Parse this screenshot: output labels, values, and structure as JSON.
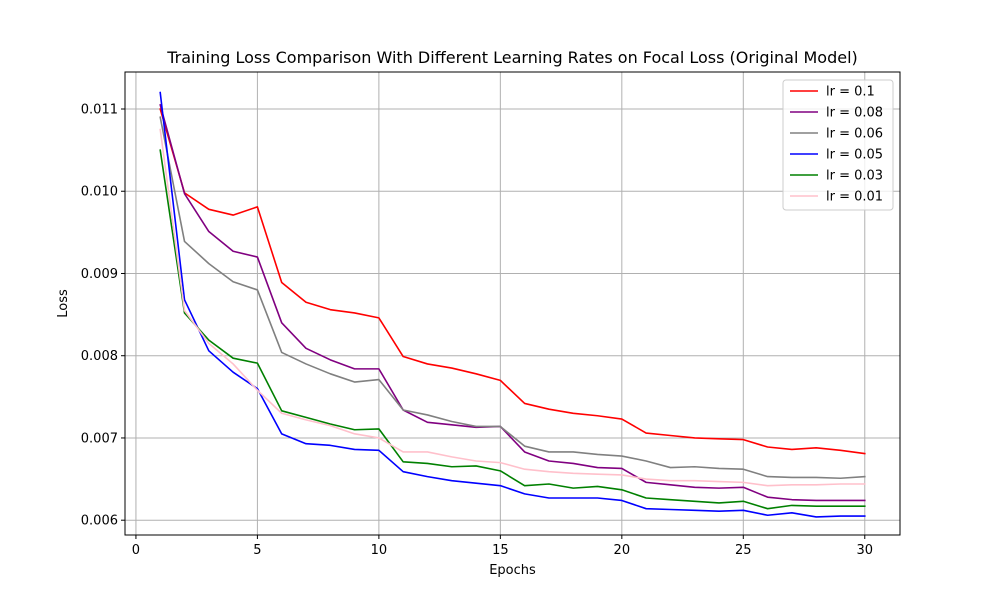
{
  "chart_data": {
    "type": "line",
    "title": "Training Loss Comparison With Different Learning Rates on Focal Loss (Original Model)",
    "xlabel": "Epochs",
    "ylabel": "Loss",
    "xlim": [
      -0.45,
      31.45
    ],
    "ylim": [
      0.00582,
      0.01145
    ],
    "xticks": [
      0,
      5,
      10,
      15,
      20,
      25,
      30
    ],
    "yticks": [
      0.006,
      0.007,
      0.008,
      0.009,
      0.01,
      0.011
    ],
    "ytick_labels": [
      "0.006",
      "0.007",
      "0.008",
      "0.009",
      "0.010",
      "0.011"
    ],
    "grid": true,
    "legend_position": "top-right",
    "x": [
      1,
      2,
      3,
      4,
      5,
      6,
      7,
      8,
      9,
      10,
      11,
      12,
      13,
      14,
      15,
      16,
      17,
      18,
      19,
      20,
      21,
      22,
      23,
      24,
      25,
      26,
      27,
      28,
      29,
      30
    ],
    "series": [
      {
        "name": "lr = 0.1",
        "color": "#ff0000",
        "values": [
          0.011,
          0.00998,
          0.00978,
          0.00971,
          0.00981,
          0.00889,
          0.00865,
          0.00856,
          0.00852,
          0.00846,
          0.00799,
          0.0079,
          0.00785,
          0.00778,
          0.0077,
          0.00742,
          0.00735,
          0.0073,
          0.00727,
          0.00723,
          0.00706,
          0.00703,
          0.007,
          0.00699,
          0.00698,
          0.00689,
          0.00686,
          0.00688,
          0.00685,
          0.00681
        ]
      },
      {
        "name": "lr = 0.08",
        "color": "#800080",
        "values": [
          0.01105,
          0.00997,
          0.00951,
          0.00927,
          0.0092,
          0.0084,
          0.00809,
          0.00795,
          0.00784,
          0.00784,
          0.00734,
          0.00719,
          0.00716,
          0.00713,
          0.00714,
          0.00683,
          0.00672,
          0.00669,
          0.00664,
          0.00663,
          0.00646,
          0.00643,
          0.0064,
          0.00639,
          0.0064,
          0.00628,
          0.00625,
          0.00624,
          0.00624,
          0.00624
        ]
      },
      {
        "name": "lr = 0.06",
        "color": "#808080",
        "values": [
          0.0109,
          0.00939,
          0.00912,
          0.0089,
          0.0088,
          0.00804,
          0.0079,
          0.00778,
          0.00768,
          0.00771,
          0.00734,
          0.00728,
          0.0072,
          0.00714,
          0.00714,
          0.0069,
          0.00683,
          0.00683,
          0.0068,
          0.00678,
          0.00672,
          0.00664,
          0.00665,
          0.00663,
          0.00662,
          0.00653,
          0.00652,
          0.00652,
          0.00651,
          0.00653
        ]
      },
      {
        "name": "lr = 0.05",
        "color": "#0000ff",
        "values": [
          0.0112,
          0.00868,
          0.00806,
          0.0078,
          0.0076,
          0.00705,
          0.00693,
          0.00691,
          0.00686,
          0.00685,
          0.00659,
          0.00653,
          0.00648,
          0.00645,
          0.00642,
          0.00632,
          0.00627,
          0.00627,
          0.00627,
          0.00624,
          0.00614,
          0.00613,
          0.00612,
          0.00611,
          0.00612,
          0.00606,
          0.00609,
          0.00604,
          0.00605,
          0.00605
        ]
      },
      {
        "name": "lr = 0.03",
        "color": "#008000",
        "values": [
          0.0105,
          0.00852,
          0.00819,
          0.00797,
          0.00791,
          0.00733,
          0.00725,
          0.00717,
          0.0071,
          0.00711,
          0.00671,
          0.00669,
          0.00665,
          0.00666,
          0.0066,
          0.00642,
          0.00644,
          0.00639,
          0.00641,
          0.00637,
          0.00627,
          0.00625,
          0.00623,
          0.00621,
          0.00623,
          0.00614,
          0.00618,
          0.00617,
          0.00617,
          0.00617
        ]
      },
      {
        "name": "lr = 0.01",
        "color": "#ffc0cb",
        "values": [
          0.01075,
          0.00855,
          0.00815,
          0.0079,
          0.00758,
          0.0073,
          0.00722,
          0.00715,
          0.00705,
          0.007,
          0.00683,
          0.00683,
          0.00677,
          0.00672,
          0.0067,
          0.00662,
          0.00659,
          0.00657,
          0.00656,
          0.00655,
          0.0065,
          0.00648,
          0.00648,
          0.00647,
          0.00646,
          0.00642,
          0.00643,
          0.00643,
          0.00644,
          0.00644
        ]
      }
    ]
  }
}
